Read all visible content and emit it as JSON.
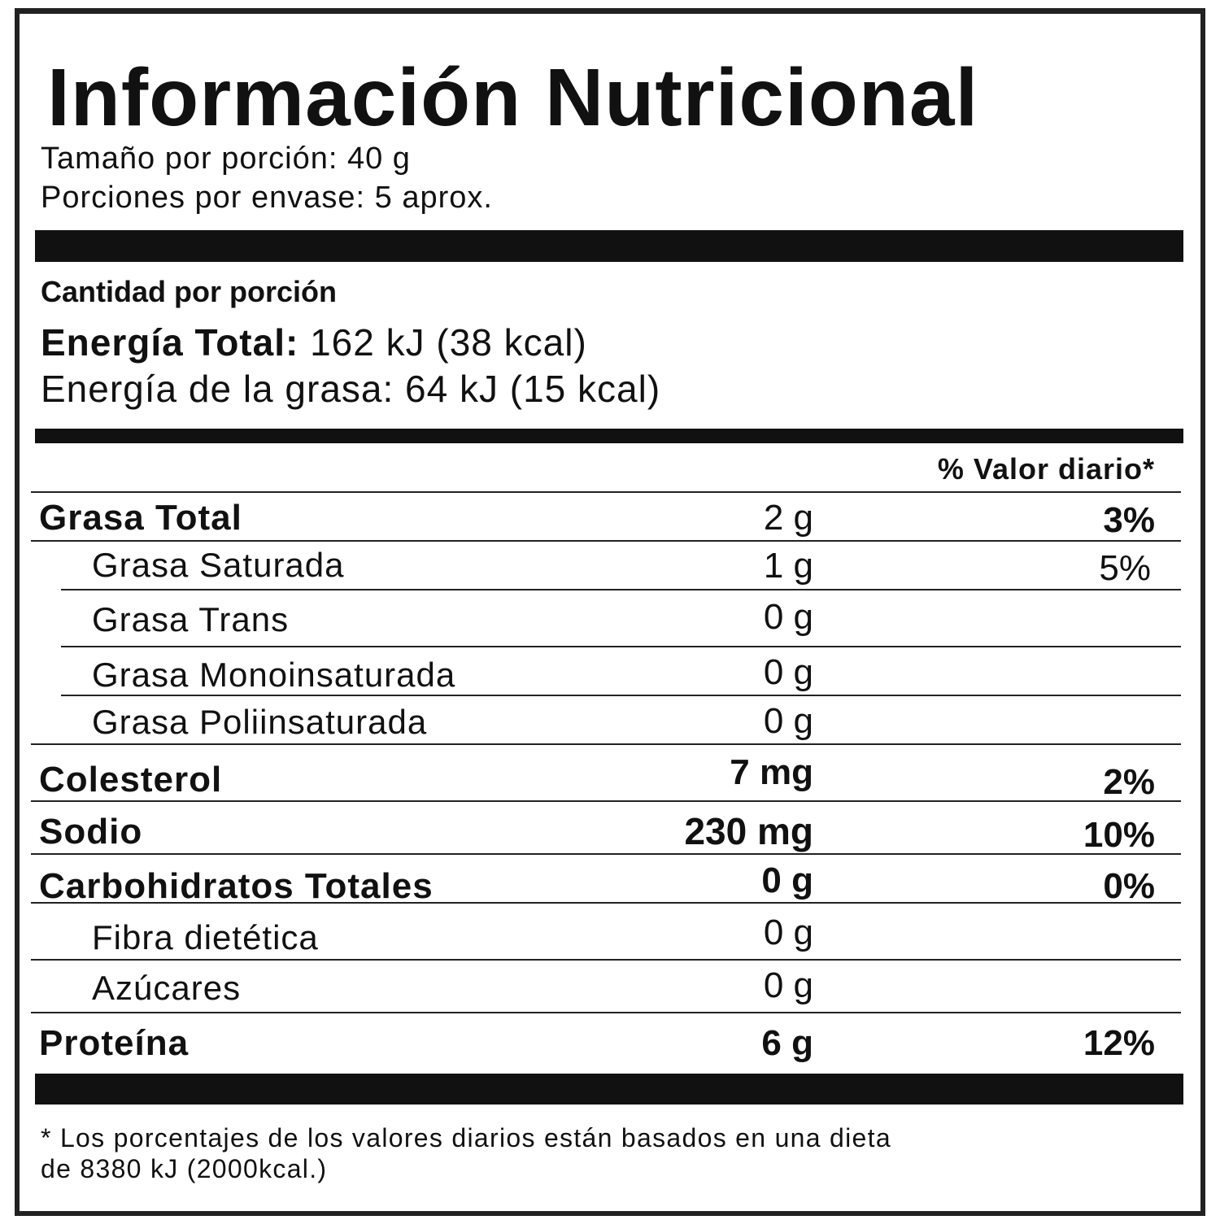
{
  "title": "Información Nutricional",
  "serving_size": "Tamaño por porción: 40 g",
  "servings_per_container": "Porciones por envase: 5  aprox.",
  "amount_per_serving": "Cantidad por porción",
  "energy_total": {
    "label": "Energía Total:",
    "value": "162 kJ (38 kcal)"
  },
  "energy_fat": "Energía de la grasa: 64 kJ (15 kcal)",
  "daily_value_header": "% Valor diario*",
  "rows": [
    {
      "label": "Grasa Total",
      "amount": "2 g",
      "dv": "3%"
    },
    {
      "label": "Grasa Saturada",
      "amount": "1 g",
      "dv": "5%"
    },
    {
      "label": "Grasa Trans",
      "amount": "0 g",
      "dv": ""
    },
    {
      "label": "Grasa Monoinsaturada",
      "amount": "0 g",
      "dv": ""
    },
    {
      "label": "Grasa Poliinsaturada",
      "amount": "0 g",
      "dv": ""
    },
    {
      "label": "Colesterol",
      "amount": "7 mg",
      "dv": "2%"
    },
    {
      "label": "Sodio",
      "amount": "230 mg",
      "dv": "10%"
    },
    {
      "label": "Carbohidratos Totales",
      "amount": "0 g",
      "dv": "0%"
    },
    {
      "label": "Fibra dietética",
      "amount": "0 g",
      "dv": ""
    },
    {
      "label": "Azúcares",
      "amount": "0 g",
      "dv": ""
    },
    {
      "label": "Proteína",
      "amount": "6 g",
      "dv": "12%"
    }
  ],
  "footnote": [
    "* Los porcentajes de los valores diarios están basados en una dieta",
    "de 8380 kJ (2000kcal.)"
  ]
}
